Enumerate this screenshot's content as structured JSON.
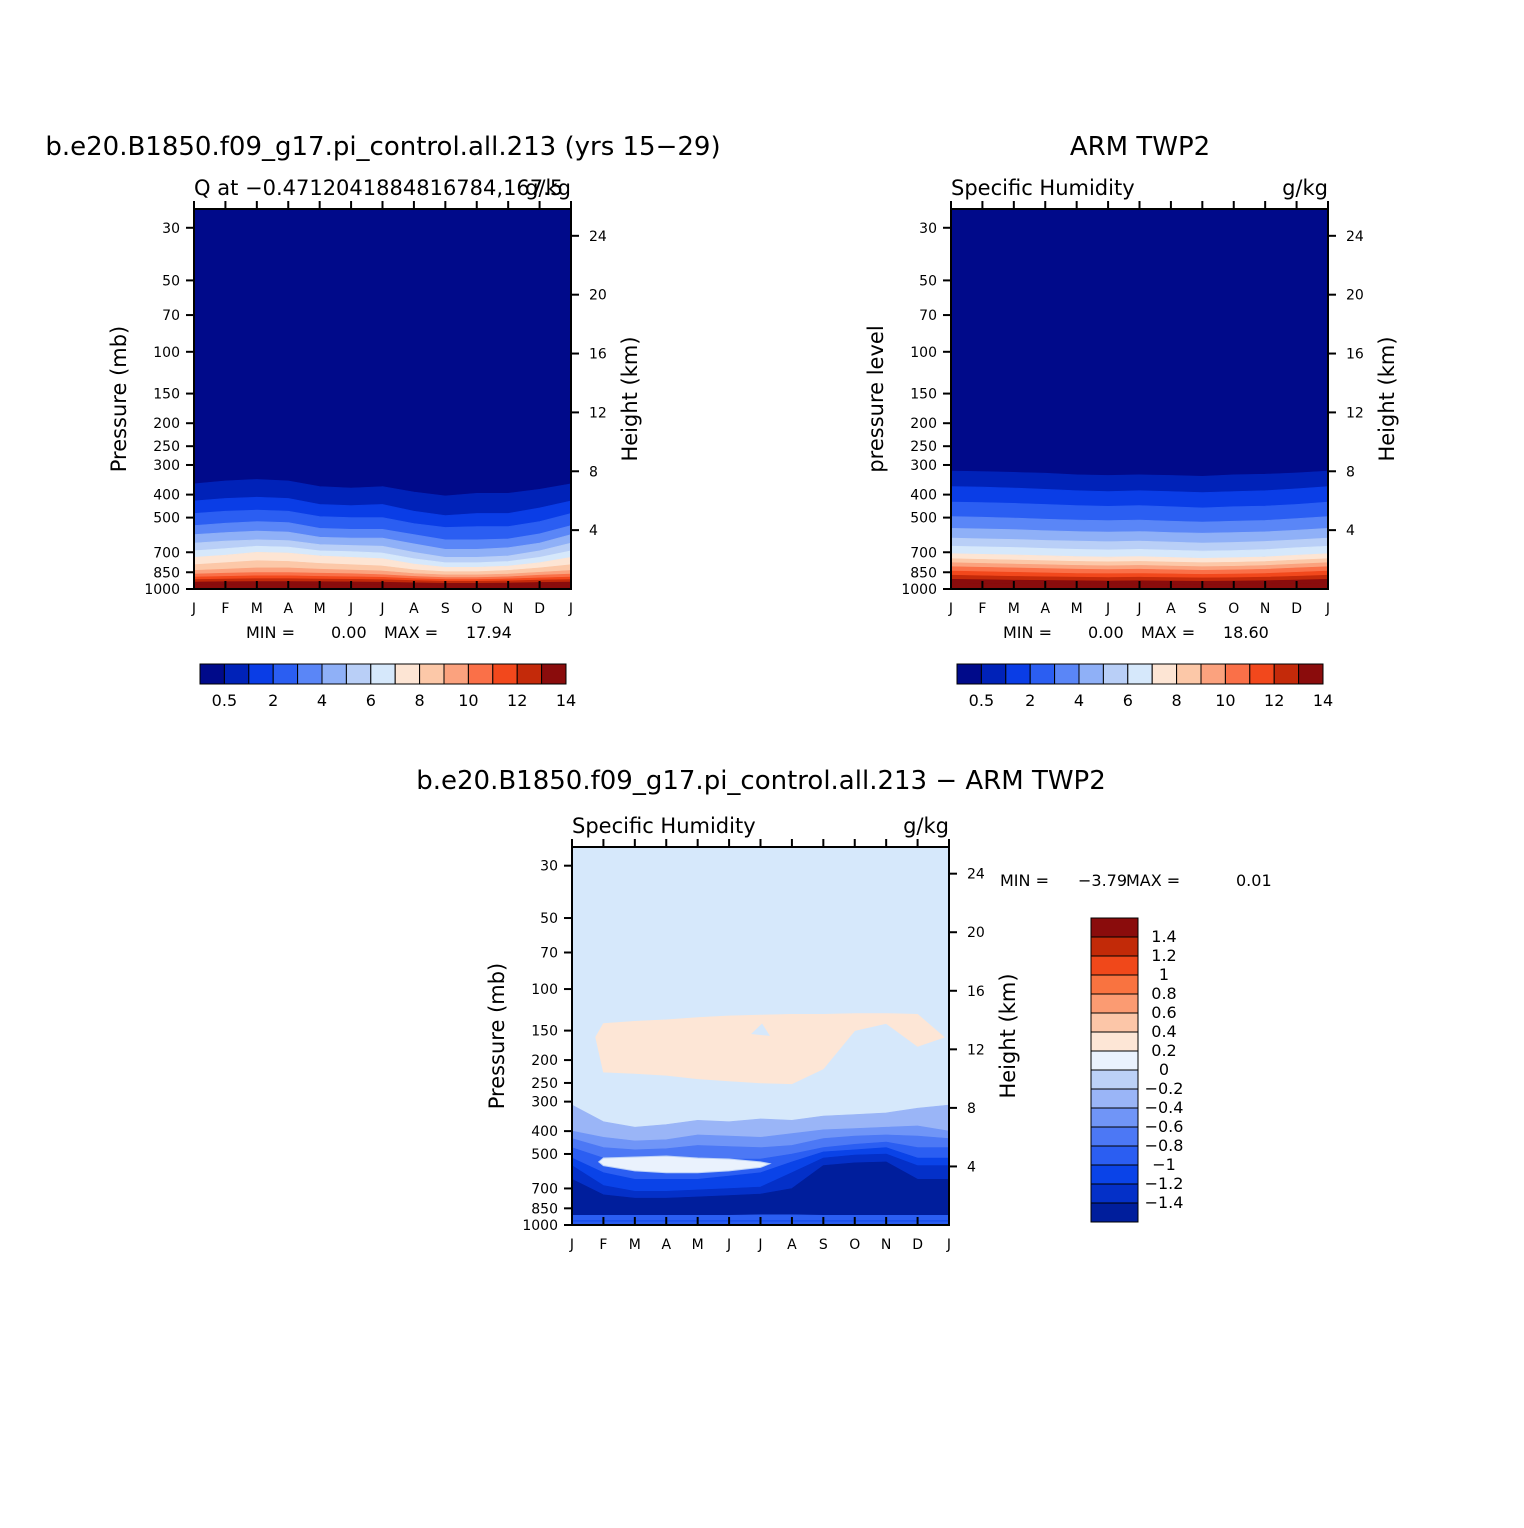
{
  "colors": {
    "q_levels": [
      "#000a8a",
      "#0022b8",
      "#0a3de6",
      "#2b5ef2",
      "#5a86f7",
      "#8fb0f7",
      "#b9cff7",
      "#d6e8fb",
      "#fde5d4",
      "#fcc8a8",
      "#fba27e",
      "#fa7048",
      "#f2481c",
      "#c42a0a",
      "#8a0c0c"
    ],
    "diff_levels": [
      "#001e9c",
      "#0430c8",
      "#0a43e8",
      "#2b5ef2",
      "#4c78f5",
      "#7095f7",
      "#9ab5f7",
      "#bcd1f7",
      "#eaf2fd",
      "#fde6d6",
      "#fcc6a8",
      "#fb9b72",
      "#f97340",
      "#f0481a",
      "#c22a08",
      "#8a0c0c"
    ]
  },
  "chart_data": [
    {
      "id": "model",
      "type": "heatmap",
      "title": "b.e20.B1850.f09_g17.pi_control.all.213 (yrs 15-29)",
      "subtitle_left": "Q at -0.4712041884816784,167.5",
      "subtitle_right": "g/kg",
      "ylabel": "Pressure (mb)",
      "ylabel_right": "Height (km)",
      "x_tick_labels": [
        "J",
        "F",
        "M",
        "A",
        "M",
        "J",
        "J",
        "A",
        "S",
        "O",
        "N",
        "D",
        "J"
      ],
      "y_ticks": [
        30,
        50,
        70,
        100,
        150,
        200,
        250,
        300,
        400,
        500,
        700,
        850,
        1000
      ],
      "height_ticks": [
        24,
        20,
        16,
        12,
        8,
        4
      ],
      "stats": {
        "min_label": "MIN =",
        "min_value": "0.00",
        "max_label": "MAX =",
        "max_value": "17.94"
      },
      "colorbar_labels": [
        "0.5",
        "2",
        "4",
        "6",
        "8",
        "10",
        "12",
        "14"
      ],
      "interfaces": [
        {
          "level": 0.5,
          "p": [
            360,
            350,
            345,
            350,
            370,
            375,
            370,
            390,
            405,
            395,
            395,
            380,
            360
          ]
        },
        {
          "level": 1,
          "p": [
            425,
            415,
            410,
            415,
            440,
            445,
            440,
            470,
            490,
            480,
            480,
            455,
            425
          ]
        },
        {
          "level": 2,
          "p": [
            480,
            470,
            465,
            470,
            495,
            500,
            500,
            530,
            550,
            545,
            545,
            520,
            480
          ]
        },
        {
          "level": 3,
          "p": [
            540,
            528,
            520,
            525,
            555,
            560,
            560,
            590,
            620,
            620,
            615,
            585,
            540
          ]
        },
        {
          "level": 4,
          "p": [
            590,
            578,
            570,
            575,
            605,
            610,
            610,
            645,
            680,
            680,
            670,
            640,
            590
          ]
        },
        {
          "level": 5,
          "p": [
            640,
            628,
            620,
            625,
            650,
            655,
            660,
            700,
            735,
            735,
            725,
            690,
            640
          ]
        },
        {
          "level": 6,
          "p": [
            690,
            675,
            660,
            665,
            690,
            695,
            705,
            745,
            775,
            775,
            765,
            735,
            690
          ]
        },
        {
          "level": 7,
          "p": [
            735,
            720,
            700,
            705,
            725,
            735,
            745,
            785,
            810,
            810,
            800,
            775,
            735
          ]
        },
        {
          "level": 8,
          "p": [
            790,
            775,
            760,
            765,
            780,
            790,
            800,
            830,
            845,
            845,
            835,
            815,
            790
          ]
        },
        {
          "level": 9,
          "p": [
            835,
            825,
            815,
            815,
            825,
            832,
            840,
            860,
            872,
            872,
            865,
            850,
            835
          ]
        },
        {
          "level": 10,
          "p": [
            865,
            858,
            852,
            852,
            858,
            862,
            870,
            885,
            895,
            895,
            888,
            875,
            865
          ]
        },
        {
          "level": 11,
          "p": [
            890,
            885,
            880,
            880,
            885,
            888,
            893,
            905,
            912,
            912,
            907,
            898,
            890
          ]
        },
        {
          "level": 12,
          "p": [
            912,
            908,
            905,
            905,
            908,
            910,
            914,
            922,
            928,
            928,
            924,
            917,
            912
          ]
        },
        {
          "level": 13,
          "p": [
            935,
            932,
            930,
            930,
            932,
            933,
            936,
            942,
            946,
            946,
            943,
            938,
            935
          ]
        },
        {
          "level": 14,
          "p": [
            958,
            956,
            955,
            955,
            956,
            957,
            959,
            963,
            966,
            966,
            964,
            960,
            958
          ]
        }
      ]
    },
    {
      "id": "obs",
      "type": "heatmap",
      "title": "ARM TWP2",
      "subtitle_left": "Specific Humidity",
      "subtitle_right": "g/kg",
      "ylabel": "pressure level",
      "ylabel_right": "Height (km)",
      "x_tick_labels": [
        "J",
        "F",
        "M",
        "A",
        "M",
        "J",
        "J",
        "A",
        "S",
        "O",
        "N",
        "D",
        "J"
      ],
      "y_ticks": [
        30,
        50,
        70,
        100,
        150,
        200,
        250,
        300,
        400,
        500,
        700,
        850,
        1000
      ],
      "height_ticks": [
        24,
        20,
        16,
        12,
        8,
        4
      ],
      "stats": {
        "min_label": "MIN =",
        "min_value": "0.00",
        "max_label": "MAX =",
        "max_value": "18.60"
      },
      "colorbar_labels": [
        "0.5",
        "2",
        "4",
        "6",
        "8",
        "10",
        "12",
        "14"
      ],
      "interfaces": [
        {
          "level": 0.5,
          "p": [
            318,
            320,
            322,
            325,
            330,
            332,
            330,
            332,
            335,
            330,
            328,
            324,
            318
          ]
        },
        {
          "level": 1,
          "p": [
            370,
            372,
            375,
            380,
            385,
            388,
            385,
            388,
            392,
            388,
            385,
            378,
            370
          ]
        },
        {
          "level": 2,
          "p": [
            430,
            432,
            435,
            440,
            445,
            448,
            445,
            450,
            455,
            450,
            447,
            440,
            430
          ]
        },
        {
          "level": 3,
          "p": [
            495,
            498,
            502,
            508,
            512,
            515,
            512,
            518,
            522,
            518,
            514,
            505,
            495
          ]
        },
        {
          "level": 4,
          "p": [
            555,
            558,
            562,
            568,
            572,
            575,
            572,
            578,
            582,
            578,
            574,
            565,
            555
          ]
        },
        {
          "level": 5,
          "p": [
            610,
            614,
            618,
            624,
            628,
            632,
            628,
            634,
            640,
            636,
            630,
            620,
            610
          ]
        },
        {
          "level": 6,
          "p": [
            660,
            664,
            668,
            674,
            680,
            684,
            680,
            686,
            692,
            688,
            682,
            670,
            660
          ]
        },
        {
          "level": 7,
          "p": [
            710,
            714,
            718,
            724,
            730,
            734,
            730,
            736,
            742,
            738,
            732,
            720,
            710
          ]
        },
        {
          "level": 8,
          "p": [
            745,
            750,
            755,
            760,
            765,
            768,
            765,
            770,
            775,
            772,
            766,
            755,
            745
          ]
        },
        {
          "level": 9,
          "p": [
            775,
            780,
            785,
            790,
            795,
            798,
            795,
            800,
            805,
            802,
            796,
            785,
            775
          ]
        },
        {
          "level": 10,
          "p": [
            805,
            810,
            815,
            820,
            825,
            828,
            825,
            830,
            834,
            831,
            826,
            815,
            805
          ]
        },
        {
          "level": 11,
          "p": [
            840,
            845,
            850,
            855,
            860,
            862,
            860,
            864,
            868,
            865,
            860,
            850,
            840
          ]
        },
        {
          "level": 12,
          "p": [
            875,
            880,
            885,
            888,
            892,
            894,
            892,
            895,
            898,
            896,
            892,
            884,
            875
          ]
        },
        {
          "level": 13,
          "p": [
            910,
            914,
            918,
            920,
            923,
            925,
            923,
            926,
            928,
            926,
            923,
            917,
            910
          ]
        },
        {
          "level": 14,
          "p": [
            945,
            948,
            950,
            952,
            954,
            955,
            954,
            956,
            958,
            956,
            954,
            950,
            945
          ]
        }
      ]
    },
    {
      "id": "diff",
      "type": "heatmap",
      "title": "b.e20.B1850.f09_g17.pi_control.all.213 - ARM TWP2",
      "subtitle_left": "Specific Humidity",
      "subtitle_right": "g/kg",
      "ylabel": "Pressure (mb)",
      "ylabel_right": "Height (km)",
      "x_tick_labels": [
        "J",
        "F",
        "M",
        "A",
        "M",
        "J",
        "J",
        "A",
        "S",
        "O",
        "N",
        "D",
        "J"
      ],
      "y_ticks": [
        30,
        50,
        70,
        100,
        150,
        200,
        250,
        300,
        400,
        500,
        700,
        850,
        1000
      ],
      "height_ticks": [
        24,
        20,
        16,
        12,
        8,
        4
      ],
      "stats": {
        "min_label": "MIN =",
        "min_value": "-3.79",
        "max_label": "MAX =",
        "max_value": "0.01"
      },
      "colorbar_labels": [
        "1.4",
        "1.2",
        "1",
        "0.8",
        "0.6",
        "0.4",
        "0.2",
        "0",
        "-0.2",
        "-0.4",
        "-0.6",
        "-0.8",
        "-1",
        "-1.2",
        "-1.4"
      ],
      "positive_region": {
        "value": 0.1,
        "top_p": [
          null,
          140,
          137,
          135,
          132,
          130,
          129,
          128,
          128,
          127,
          127,
          128,
          null
        ],
        "bottom_p": [
          null,
          225,
          228,
          232,
          240,
          245,
          250,
          252,
          218,
          150,
          140,
          175,
          null
        ]
      },
      "bands": [
        {
          "value": -0.3,
          "p": [
            310,
            365,
            385,
            375,
            360,
            365,
            355,
            360,
            345,
            340,
            335,
            320,
            310
          ]
        },
        {
          "value": -0.5,
          "p": [
            400,
            425,
            440,
            435,
            415,
            420,
            425,
            410,
            395,
            390,
            385,
            380,
            400
          ]
        },
        {
          "value": -0.7,
          "p": [
            430,
            470,
            480,
            475,
            460,
            465,
            470,
            460,
            430,
            420,
            415,
            420,
            430
          ]
        },
        {
          "value": -0.9,
          "p": [
            470,
            520,
            540,
            530,
            520,
            525,
            525,
            500,
            470,
            455,
            445,
            470,
            470
          ]
        },
        {
          "value": -1.1,
          "p": [
            520,
            600,
            640,
            640,
            640,
            620,
            600,
            540,
            490,
            480,
            470,
            520,
            520
          ]
        },
        {
          "value": -1.3,
          "p": [
            560,
            680,
            720,
            720,
            710,
            700,
            690,
            600,
            520,
            505,
            500,
            560,
            560
          ]
        },
        {
          "value": -1.6,
          "p": [
            640,
            745,
            770,
            770,
            760,
            750,
            740,
            700,
            560,
            545,
            540,
            640,
            640
          ]
        },
        {
          "value": -0.8,
          "p": [
            910,
            910,
            910,
            910,
            910,
            910,
            905,
            905,
            910,
            910,
            910,
            910,
            910
          ]
        },
        {
          "value": -1.0,
          "p": [
            960,
            960,
            960,
            960,
            960,
            960,
            960,
            960,
            960,
            960,
            960,
            960,
            960
          ]
        }
      ],
      "light_pocket": {
        "value": -0.2,
        "top_p": [
          null,
          520,
          515,
          510,
          520,
          525,
          540,
          null,
          null,
          null,
          null,
          null,
          null
        ],
        "bottom_p": [
          null,
          560,
          590,
          600,
          600,
          590,
          570,
          null,
          null,
          null,
          null,
          null,
          null
        ]
      }
    }
  ]
}
